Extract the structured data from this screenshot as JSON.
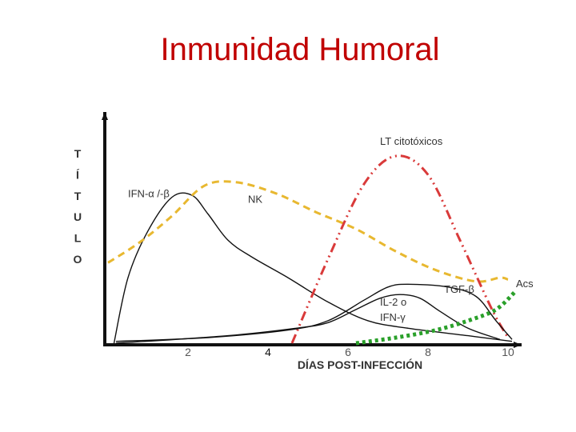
{
  "slide": {
    "title": "Inmunidad Humoral"
  },
  "chart_data": {
    "type": "line",
    "title": "Inmunidad Humoral",
    "xlabel": "DÍAS POST-INFECCIÓN",
    "ylabel": "TÍTULO",
    "ylabel_letters": [
      "T",
      "Í",
      "T",
      "U",
      "L",
      "O"
    ],
    "xlim": [
      0,
      10.2
    ],
    "ylim": [
      0,
      1
    ],
    "ticks": [
      {
        "x": 2,
        "label": "2",
        "color": "#555555"
      },
      {
        "x": 4,
        "label": "4",
        "color": "#111111"
      },
      {
        "x": 6,
        "label": "6",
        "color": "#555555"
      },
      {
        "x": 8,
        "label": "8",
        "color": "#555555"
      },
      {
        "x": 10,
        "label": "10",
        "color": "#555555"
      }
    ],
    "grid": false,
    "legend": "none",
    "series": [
      {
        "key": "ifn",
        "name": "IFN-α /-β",
        "color": "#111111",
        "width": 1.4,
        "dash": "",
        "points": [
          [
            0.15,
            0.0
          ],
          [
            0.5,
            0.35
          ],
          [
            1.0,
            0.6
          ],
          [
            1.6,
            0.78
          ],
          [
            2.1,
            0.79
          ],
          [
            2.5,
            0.69
          ],
          [
            3.0,
            0.55
          ],
          [
            3.6,
            0.46
          ],
          [
            4.5,
            0.35
          ],
          [
            5.5,
            0.22
          ],
          [
            6.5,
            0.12
          ],
          [
            7.5,
            0.08
          ],
          [
            9.0,
            0.04
          ],
          [
            10.1,
            0.01
          ]
        ]
      },
      {
        "key": "nk",
        "name": "NK",
        "color": "#e8b830",
        "width": 3,
        "dash": "9 6",
        "points": [
          [
            0.0,
            0.43
          ],
          [
            0.8,
            0.54
          ],
          [
            1.6,
            0.68
          ],
          [
            2.4,
            0.84
          ],
          [
            3.2,
            0.86
          ],
          [
            4.2,
            0.8
          ],
          [
            5.2,
            0.7
          ],
          [
            6.2,
            0.61
          ],
          [
            7.2,
            0.49
          ],
          [
            8.2,
            0.39
          ],
          [
            9.2,
            0.33
          ],
          [
            9.8,
            0.35
          ],
          [
            10.0,
            0.34
          ]
        ]
      },
      {
        "key": "lt",
        "name": "LT citotóxicos",
        "color": "#d93a3a",
        "width": 3,
        "dash": "12 5 2 5 2 5",
        "points": [
          [
            4.6,
            0.0
          ],
          [
            5.5,
            0.45
          ],
          [
            6.4,
            0.85
          ],
          [
            7.2,
            1.0
          ],
          [
            8.0,
            0.9
          ],
          [
            8.8,
            0.55
          ],
          [
            9.6,
            0.18
          ],
          [
            10.0,
            0.03
          ]
        ]
      },
      {
        "key": "tgf",
        "name": "TGF-β",
        "color": "#111111",
        "width": 1.4,
        "dash": "",
        "points": [
          [
            0.2,
            0.01
          ],
          [
            2.5,
            0.03
          ],
          [
            4.5,
            0.07
          ],
          [
            5.5,
            0.12
          ],
          [
            6.4,
            0.23
          ],
          [
            7.0,
            0.3
          ],
          [
            7.5,
            0.315
          ],
          [
            8.5,
            0.3
          ],
          [
            9.2,
            0.25
          ],
          [
            9.7,
            0.12
          ],
          [
            10.1,
            0.02
          ]
        ]
      },
      {
        "key": "il2",
        "name": "IL-2 o\nIFN-γ",
        "color": "#111111",
        "width": 1.4,
        "dash": "",
        "points": [
          [
            0.2,
            0.0
          ],
          [
            3.0,
            0.04
          ],
          [
            4.7,
            0.08
          ],
          [
            5.5,
            0.11
          ],
          [
            6.2,
            0.18
          ],
          [
            6.8,
            0.24
          ],
          [
            7.3,
            0.26
          ],
          [
            7.8,
            0.24
          ],
          [
            8.3,
            0.17
          ],
          [
            9.0,
            0.08
          ],
          [
            9.8,
            0.02
          ]
        ]
      },
      {
        "key": "acs",
        "name": "Acs",
        "color": "#2aa02a",
        "width": 5,
        "dash": "4 4",
        "points": [
          [
            6.2,
            0.0
          ],
          [
            7.2,
            0.03
          ],
          [
            8.2,
            0.07
          ],
          [
            9.0,
            0.12
          ],
          [
            9.7,
            0.18
          ],
          [
            10.2,
            0.28
          ]
        ]
      }
    ],
    "labels": [
      {
        "text": "LT citotóxicos",
        "x": 6.8,
        "y": 1.06
      },
      {
        "text": "NK",
        "x": 3.5,
        "y": 0.75
      },
      {
        "text": "IFN-α /-β",
        "x": 0.5,
        "y": 0.78
      },
      {
        "text": "TGF-β",
        "x": 8.4,
        "y": 0.27
      },
      {
        "text": "Acs",
        "x": 10.2,
        "y": 0.3
      },
      {
        "text": "IL-2  o",
        "x": 6.8,
        "y": 0.2
      },
      {
        "text": "IFN-γ",
        "x": 6.8,
        "y": 0.12
      }
    ]
  }
}
